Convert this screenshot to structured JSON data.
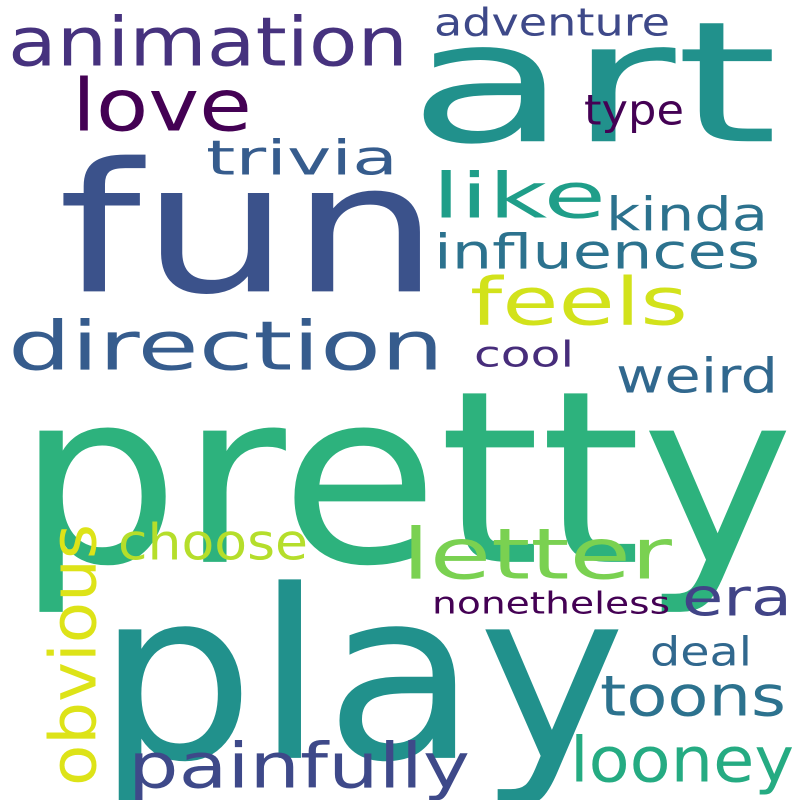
{
  "words": [
    {
      "text": "pretty",
      "color": "#2db27d"
    },
    {
      "text": "play",
      "color": "#21918c"
    },
    {
      "text": "fun",
      "color": "#3b528b"
    },
    {
      "text": "art",
      "color": "#21918c"
    },
    {
      "text": "animation",
      "color": "#46327e"
    },
    {
      "text": "direction",
      "color": "#365c8d"
    },
    {
      "text": "love",
      "color": "#440154"
    },
    {
      "text": "letter",
      "color": "#7ad151"
    },
    {
      "text": "feels",
      "color": "#d2e21b"
    },
    {
      "text": "like",
      "color": "#1f9e89"
    },
    {
      "text": "influences",
      "color": "#2c728e"
    },
    {
      "text": "painfully",
      "color": "#3e4989"
    },
    {
      "text": "looney",
      "color": "#25ab82"
    },
    {
      "text": "toons",
      "color": "#2c728e"
    },
    {
      "text": "era",
      "color": "#414487"
    },
    {
      "text": "choose",
      "color": "#b5de2b"
    },
    {
      "text": "obvious",
      "color": "#dde318"
    },
    {
      "text": "trivia",
      "color": "#365c8d"
    },
    {
      "text": "kinda",
      "color": "#2c728e"
    },
    {
      "text": "weird",
      "color": "#31688e"
    },
    {
      "text": "adventure",
      "color": "#3e4989"
    },
    {
      "text": "type",
      "color": "#440154"
    },
    {
      "text": "cool",
      "color": "#472d7b"
    },
    {
      "text": "deal",
      "color": "#31688e"
    },
    {
      "text": "nonetheless",
      "color": "#440154"
    }
  ]
}
